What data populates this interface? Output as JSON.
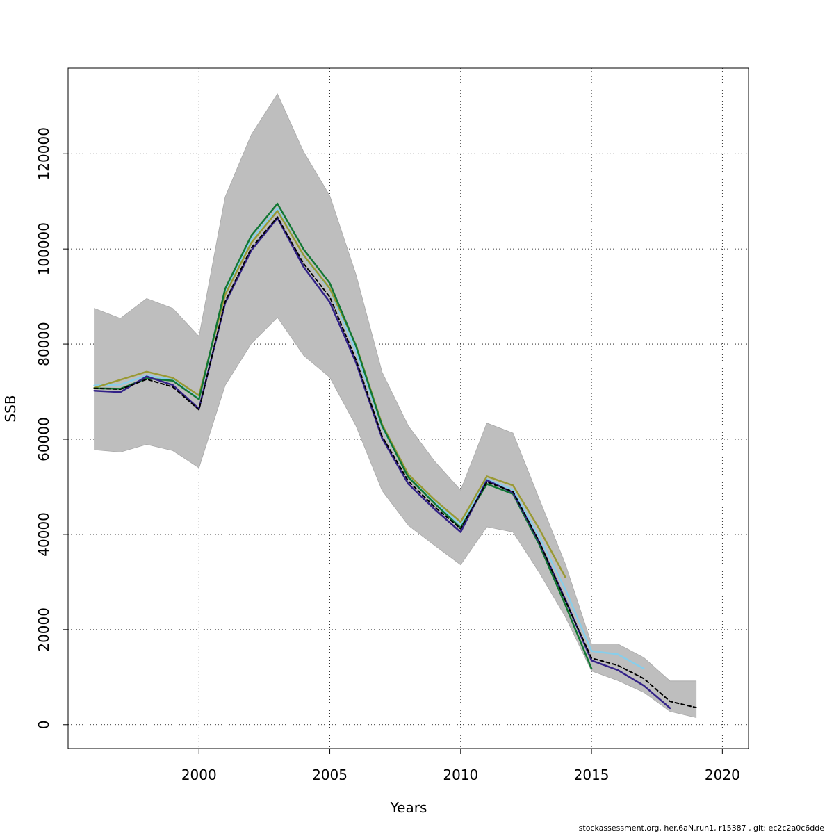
{
  "chart_data": {
    "type": "line",
    "xlabel": "Years",
    "ylabel": "SSB",
    "xlim": [
      1995,
      2021
    ],
    "ylim": [
      -5000,
      138000
    ],
    "x_ticks": [
      2000,
      2005,
      2010,
      2015,
      2020
    ],
    "y_ticks": [
      0,
      20000,
      40000,
      60000,
      80000,
      100000,
      120000
    ],
    "grid": true,
    "confidence_band": {
      "color": "#bebebe",
      "x": [
        1996,
        1997,
        1998,
        1999,
        2000,
        2001,
        2002,
        2003,
        2004,
        2005,
        2006,
        2007,
        2008,
        2009,
        2010,
        2011,
        2012,
        2013,
        2014,
        2015,
        2016,
        2017,
        2018,
        2019
      ],
      "lower": [
        57800,
        57300,
        58900,
        57600,
        54000,
        71300,
        80100,
        85600,
        77600,
        73000,
        62800,
        49200,
        41900,
        37700,
        33600,
        41600,
        40500,
        32000,
        22700,
        11300,
        9300,
        6800,
        2800,
        1500
      ],
      "upper": [
        87500,
        85400,
        89600,
        87500,
        81600,
        110900,
        124000,
        132600,
        120400,
        111200,
        94600,
        74100,
        62800,
        55400,
        49300,
        63400,
        61300,
        47500,
        33800,
        17000,
        17000,
        14100,
        9200,
        9200
      ]
    },
    "series": [
      {
        "color": "#000000",
        "dashed": true,
        "x": [
          1996,
          1997,
          1998,
          1999,
          2000,
          2001,
          2002,
          2003,
          2004,
          2005,
          2006,
          2007,
          2008,
          2009,
          2010,
          2011,
          2012,
          2013,
          2014,
          2015,
          2016,
          2017,
          2018,
          2019
        ],
        "values": [
          70700,
          70500,
          72600,
          71000,
          66200,
          88900,
          100200,
          106700,
          96900,
          89900,
          76700,
          60600,
          51200,
          45800,
          41200,
          51000,
          49000,
          38500,
          26100,
          14000,
          12500,
          9700,
          4900,
          3600
        ]
      },
      {
        "color": "#87ceeb",
        "x": [
          1996,
          1997,
          1998,
          1999,
          2000,
          2001,
          2002,
          2003,
          2004,
          2005,
          2006,
          2007,
          2008,
          2009,
          2010,
          2011,
          2012,
          2013,
          2014,
          2015,
          2016,
          2017
        ],
        "values": [
          71300,
          71500,
          73400,
          72500,
          68500,
          91000,
          102000,
          108500,
          98500,
          91500,
          78500,
          62500,
          52200,
          46800,
          42000,
          51600,
          49400,
          39500,
          28500,
          15500,
          14800,
          11800
        ]
      },
      {
        "color": "#999933",
        "x": [
          1996,
          1997,
          1998,
          1999,
          2000,
          2001,
          2002,
          2003,
          2004,
          2005,
          2006,
          2007,
          2008,
          2009,
          2010,
          2011,
          2012,
          2013,
          2014
        ],
        "values": [
          70800,
          72500,
          74200,
          72900,
          69200,
          90400,
          101300,
          108000,
          98700,
          91700,
          79800,
          63100,
          52600,
          47300,
          42600,
          52200,
          50300,
          41200,
          31000
        ]
      },
      {
        "color": "#117733",
        "x": [
          1996,
          1997,
          1998,
          1999,
          2000,
          2001,
          2002,
          2003,
          2004,
          2005,
          2006,
          2007,
          2008,
          2009,
          2010,
          2011,
          2012,
          2013,
          2014,
          2015
        ],
        "values": [
          70700,
          70600,
          72800,
          72300,
          68400,
          91600,
          102800,
          109500,
          99900,
          92800,
          79600,
          62800,
          52000,
          46500,
          41400,
          50600,
          48500,
          37900,
          25200,
          11800
        ]
      },
      {
        "color": "#332288",
        "x": [
          1996,
          1997,
          1998,
          1999,
          2000,
          2001,
          2002,
          2003,
          2004,
          2005,
          2006,
          2007,
          2008,
          2009,
          2010,
          2011,
          2012,
          2013,
          2014,
          2015,
          2016,
          2017,
          2018
        ],
        "values": [
          70200,
          69900,
          73200,
          71400,
          66400,
          88600,
          99700,
          106500,
          96200,
          88800,
          76100,
          60200,
          50600,
          45300,
          40500,
          51400,
          48800,
          38400,
          26300,
          13500,
          11500,
          8200,
          3500
        ]
      }
    ]
  },
  "footer": "stockassessment.org, her.6aN.run1, r15387 , git: ec2c2a0c6dde"
}
